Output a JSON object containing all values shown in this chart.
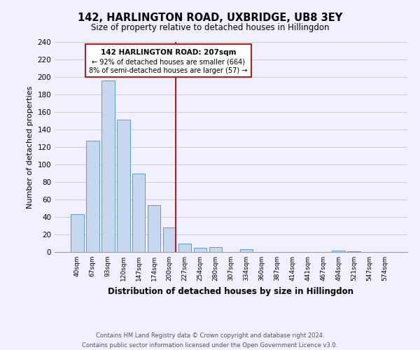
{
  "title": "142, HARLINGTON ROAD, UXBRIDGE, UB8 3EY",
  "subtitle": "Size of property relative to detached houses in Hillingdon",
  "xlabel": "Distribution of detached houses by size in Hillingdon",
  "ylabel": "Number of detached properties",
  "bin_labels": [
    "40sqm",
    "67sqm",
    "93sqm",
    "120sqm",
    "147sqm",
    "174sqm",
    "200sqm",
    "227sqm",
    "254sqm",
    "280sqm",
    "307sqm",
    "334sqm",
    "360sqm",
    "387sqm",
    "414sqm",
    "441sqm",
    "467sqm",
    "494sqm",
    "521sqm",
    "547sqm",
    "574sqm"
  ],
  "bar_values": [
    43,
    127,
    196,
    151,
    90,
    54,
    28,
    10,
    5,
    6,
    0,
    3,
    0,
    0,
    0,
    0,
    0,
    2,
    1,
    0,
    0
  ],
  "bar_color": "#c5d8f0",
  "bar_edgecolor": "#5b9bd5",
  "property_line_label": "142 HARLINGTON ROAD: 207sqm",
  "annotation_line1": "← 92% of detached houses are smaller (664)",
  "annotation_line2": "8% of semi-detached houses are larger (57) →",
  "annotation_box_edgecolor": "#b22222",
  "annotation_text_color": "#000000",
  "vline_color": "#b22222",
  "ylim": [
    0,
    240
  ],
  "yticks": [
    0,
    20,
    40,
    60,
    80,
    100,
    120,
    140,
    160,
    180,
    200,
    220,
    240
  ],
  "grid_color": "#cccccc",
  "background_color": "#f0f0ff",
  "footer_line1": "Contains HM Land Registry data © Crown copyright and database right 2024.",
  "footer_line2": "Contains public sector information licensed under the Open Government Licence v3.0."
}
